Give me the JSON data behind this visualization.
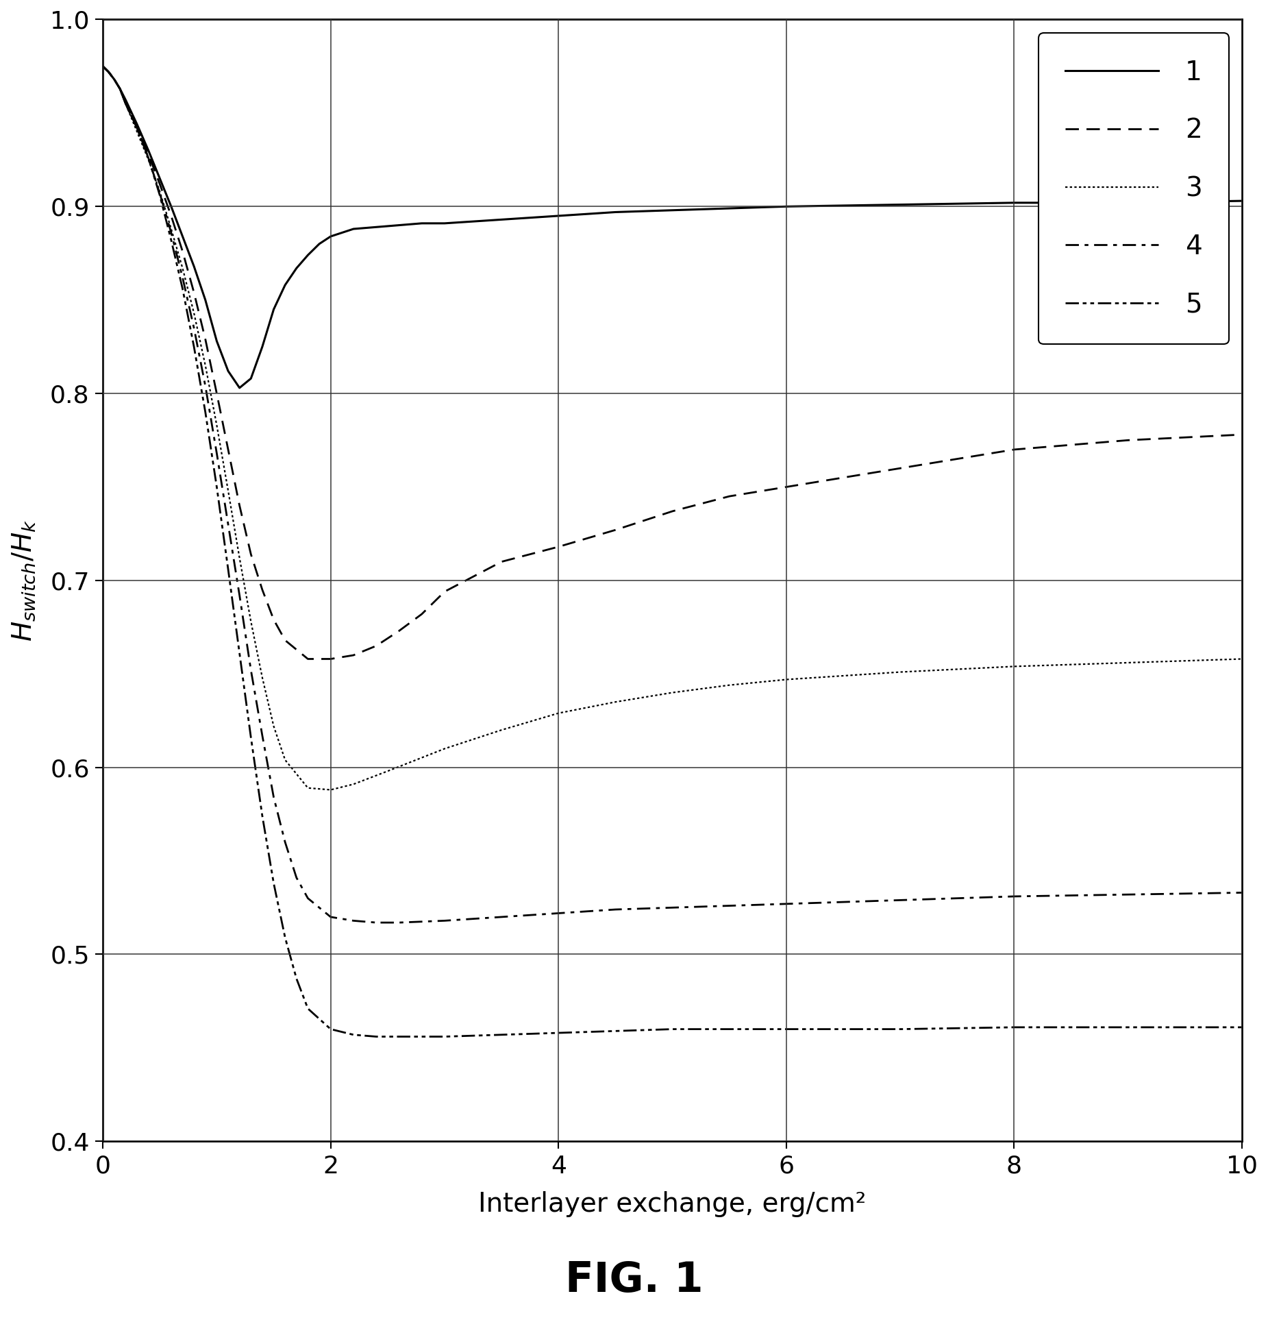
{
  "title": "FIG. 1",
  "xlabel": "Interlayer exchange, erg/cm²",
  "ylabel": "H_switch/H_k",
  "xlim": [
    0,
    10
  ],
  "ylim": [
    0.4,
    1.0
  ],
  "xticks": [
    0,
    2,
    4,
    6,
    8,
    10
  ],
  "yticks": [
    0.4,
    0.5,
    0.6,
    0.7,
    0.8,
    0.9,
    1.0
  ],
  "legend_labels": [
    "1",
    "2",
    "3",
    "4",
    "5"
  ],
  "background_color": "#ffffff",
  "curve1_x": [
    0,
    0.05,
    0.1,
    0.15,
    0.2,
    0.3,
    0.4,
    0.5,
    0.6,
    0.7,
    0.8,
    0.9,
    1.0,
    1.1,
    1.2,
    1.3,
    1.4,
    1.5,
    1.6,
    1.7,
    1.8,
    1.9,
    2.0,
    2.2,
    2.4,
    2.6,
    2.8,
    3.0,
    3.5,
    4.0,
    4.5,
    5.0,
    5.5,
    6.0,
    7.0,
    8.0,
    9.0,
    10.0
  ],
  "curve1_y": [
    0.975,
    0.972,
    0.968,
    0.963,
    0.957,
    0.944,
    0.93,
    0.915,
    0.9,
    0.884,
    0.868,
    0.85,
    0.828,
    0.812,
    0.803,
    0.808,
    0.825,
    0.845,
    0.858,
    0.867,
    0.874,
    0.88,
    0.884,
    0.888,
    0.889,
    0.89,
    0.891,
    0.891,
    0.893,
    0.895,
    0.897,
    0.898,
    0.899,
    0.9,
    0.901,
    0.902,
    0.902,
    0.903
  ],
  "curve2_x": [
    0,
    0.05,
    0.1,
    0.15,
    0.2,
    0.3,
    0.4,
    0.5,
    0.6,
    0.7,
    0.8,
    0.9,
    1.0,
    1.1,
    1.2,
    1.3,
    1.4,
    1.5,
    1.6,
    1.8,
    2.0,
    2.2,
    2.4,
    2.6,
    2.8,
    3.0,
    3.5,
    4.0,
    4.5,
    5.0,
    5.5,
    6.0,
    7.0,
    8.0,
    9.0,
    10.0
  ],
  "curve2_y": [
    0.975,
    0.972,
    0.968,
    0.963,
    0.955,
    0.942,
    0.928,
    0.912,
    0.895,
    0.876,
    0.854,
    0.829,
    0.8,
    0.77,
    0.74,
    0.714,
    0.695,
    0.679,
    0.668,
    0.658,
    0.658,
    0.66,
    0.665,
    0.673,
    0.682,
    0.694,
    0.71,
    0.718,
    0.727,
    0.737,
    0.745,
    0.75,
    0.76,
    0.77,
    0.775,
    0.778
  ],
  "curve3_x": [
    0,
    0.05,
    0.1,
    0.15,
    0.2,
    0.3,
    0.4,
    0.5,
    0.6,
    0.7,
    0.8,
    0.9,
    1.0,
    1.1,
    1.2,
    1.3,
    1.4,
    1.5,
    1.6,
    1.8,
    2.0,
    2.2,
    2.5,
    3.0,
    3.5,
    4.0,
    4.5,
    5.0,
    5.5,
    6.0,
    7.0,
    8.0,
    9.0,
    10.0
  ],
  "curve3_y": [
    0.975,
    0.972,
    0.968,
    0.963,
    0.955,
    0.94,
    0.925,
    0.908,
    0.888,
    0.867,
    0.843,
    0.815,
    0.783,
    0.748,
    0.712,
    0.678,
    0.648,
    0.622,
    0.604,
    0.589,
    0.588,
    0.591,
    0.598,
    0.61,
    0.62,
    0.629,
    0.635,
    0.64,
    0.644,
    0.647,
    0.651,
    0.654,
    0.656,
    0.658
  ],
  "curve4_x": [
    0,
    0.05,
    0.1,
    0.15,
    0.2,
    0.3,
    0.4,
    0.5,
    0.6,
    0.7,
    0.8,
    0.9,
    1.0,
    1.1,
    1.2,
    1.3,
    1.4,
    1.5,
    1.6,
    1.7,
    1.8,
    2.0,
    2.2,
    2.4,
    2.6,
    3.0,
    3.5,
    4.0,
    4.5,
    5.0,
    5.5,
    6.0,
    7.0,
    8.0,
    9.0,
    10.0
  ],
  "curve4_y": [
    0.975,
    0.972,
    0.968,
    0.963,
    0.955,
    0.942,
    0.926,
    0.907,
    0.886,
    0.862,
    0.835,
    0.804,
    0.768,
    0.73,
    0.692,
    0.652,
    0.617,
    0.584,
    0.56,
    0.541,
    0.53,
    0.52,
    0.518,
    0.517,
    0.517,
    0.518,
    0.52,
    0.522,
    0.524,
    0.525,
    0.526,
    0.527,
    0.529,
    0.531,
    0.532,
    0.533
  ],
  "curve5_x": [
    0,
    0.05,
    0.1,
    0.15,
    0.2,
    0.3,
    0.4,
    0.5,
    0.6,
    0.7,
    0.8,
    0.9,
    1.0,
    1.1,
    1.2,
    1.3,
    1.4,
    1.5,
    1.6,
    1.7,
    1.8,
    2.0,
    2.2,
    2.4,
    2.6,
    2.8,
    3.0,
    3.5,
    4.0,
    4.5,
    5.0,
    5.5,
    6.0,
    7.0,
    8.0,
    9.0,
    10.0
  ],
  "curve5_y": [
    0.975,
    0.972,
    0.968,
    0.963,
    0.955,
    0.942,
    0.926,
    0.906,
    0.882,
    0.856,
    0.825,
    0.79,
    0.75,
    0.706,
    0.661,
    0.616,
    0.574,
    0.538,
    0.509,
    0.487,
    0.471,
    0.46,
    0.457,
    0.456,
    0.456,
    0.456,
    0.456,
    0.457,
    0.458,
    0.459,
    0.46,
    0.46,
    0.46,
    0.46,
    0.461,
    0.461,
    0.461
  ]
}
